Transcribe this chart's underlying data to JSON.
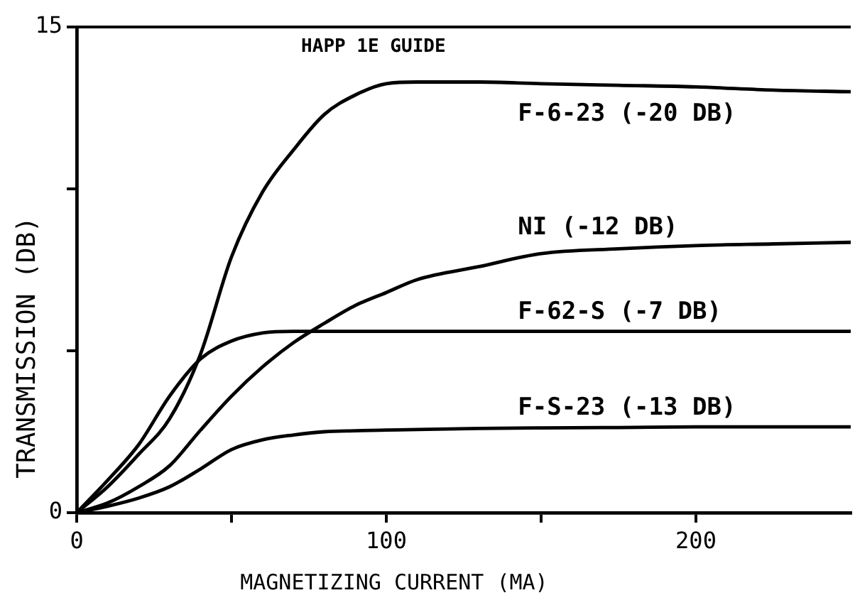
{
  "chart_data": {
    "type": "line",
    "xlabel": "MAGNETIZING CURRENT (MA)",
    "ylabel": "TRANSMISSION (DB)",
    "x": [
      0,
      10,
      20,
      30,
      40,
      50,
      60,
      70,
      80,
      90,
      100,
      110,
      130,
      150,
      175,
      200,
      225,
      250
    ],
    "series": [
      {
        "name": "F-6-23 (-20 DB)",
        "color": "#000000",
        "values": [
          0,
          0.8,
          1.8,
          2.9,
          4.9,
          7.9,
          9.9,
          11.2,
          12.3,
          12.9,
          13.25,
          13.3,
          13.3,
          13.25,
          13.2,
          13.15,
          13.05,
          13.0
        ]
      },
      {
        "name": "NI (-12 DB)",
        "color": "#000000",
        "values": [
          0,
          0.3,
          0.8,
          1.45,
          2.55,
          3.6,
          4.5,
          5.25,
          5.85,
          6.4,
          6.8,
          7.2,
          7.6,
          8.0,
          8.15,
          8.25,
          8.3,
          8.35
        ]
      },
      {
        "name": "F-62-S (-7 DB)",
        "color": "#000000",
        "values": [
          0,
          1.0,
          2.1,
          3.6,
          4.75,
          5.3,
          5.55,
          5.6,
          5.6,
          5.6,
          5.6,
          5.6,
          5.6,
          5.6,
          5.6,
          5.6,
          5.6,
          5.6
        ]
      },
      {
        "name": "F-S-23 (-13 DB)",
        "color": "#000000",
        "values": [
          0,
          0.2,
          0.45,
          0.8,
          1.35,
          1.95,
          2.25,
          2.4,
          2.5,
          2.53,
          2.55,
          2.57,
          2.6,
          2.62,
          2.63,
          2.65,
          2.65,
          2.65
        ]
      }
    ],
    "annotations": [
      "HAPP 1E GUIDE"
    ],
    "xlim": [
      0,
      250
    ],
    "xticks": [
      0,
      {
        "value": 50,
        "label": null
      },
      100,
      {
        "value": 150,
        "label": null
      },
      200
    ],
    "ylim": [
      0,
      15
    ],
    "yticks": [
      0,
      {
        "value": 5,
        "label": null
      },
      {
        "value": 10,
        "label": null
      },
      15
    ],
    "grid": false,
    "legend": false
  }
}
